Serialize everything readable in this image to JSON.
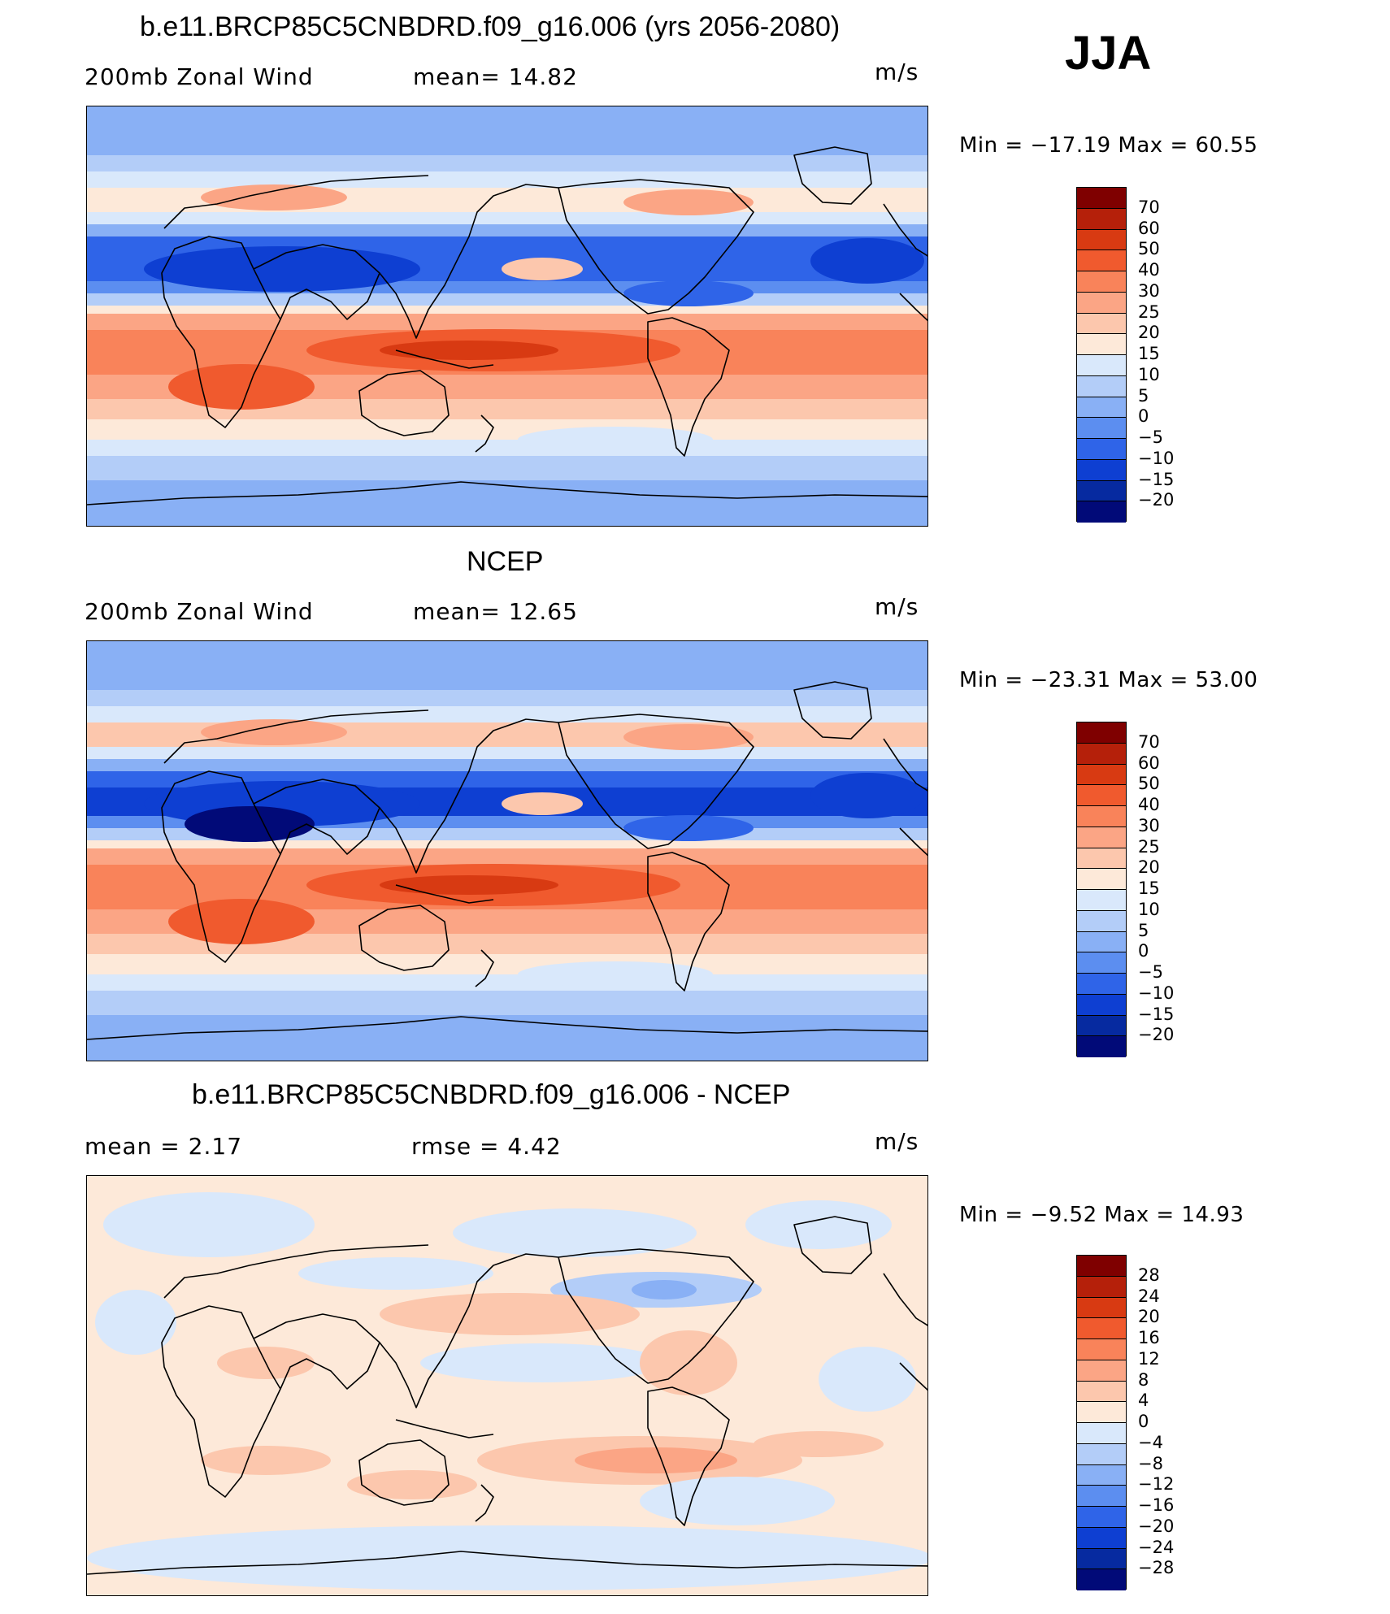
{
  "season": "JJA",
  "panels": [
    {
      "title": "b.e11.BRCP85C5CNBDRD.f09_g16.006 (yrs 2056-2080)",
      "left_label": "200mb  Zonal  Wind",
      "center_label": "mean=   14.82",
      "units": "m/s",
      "stats": "Min  =  −17.19  Max  =    60.55",
      "type": "field",
      "colorbar": {
        "labels": [
          "70",
          "60",
          "50",
          "40",
          "30",
          "25",
          "20",
          "15",
          "10",
          "5",
          "0",
          "−5",
          "−10",
          "−15",
          "−20"
        ],
        "colors": [
          "#7f0000",
          "#b5200a",
          "#d83a12",
          "#f05a2e",
          "#f9835a",
          "#fba585",
          "#fcc7ad",
          "#fde9d9",
          "#d9e8fb",
          "#b3cdf8",
          "#89b0f5",
          "#5c8ef0",
          "#2f64e8",
          "#0e3fd2",
          "#062aa0",
          "#010a78"
        ]
      },
      "min": -17.19,
      "max": 60.55
    },
    {
      "title": "NCEP",
      "left_label": "200mb  Zonal  Wind",
      "center_label": "mean=   12.65",
      "units": "m/s",
      "stats": "Min  =  −23.31  Max  =    53.00",
      "type": "field",
      "colorbar": {
        "labels": [
          "70",
          "60",
          "50",
          "40",
          "30",
          "25",
          "20",
          "15",
          "10",
          "5",
          "0",
          "−5",
          "−10",
          "−15",
          "−20"
        ],
        "colors": [
          "#7f0000",
          "#b5200a",
          "#d83a12",
          "#f05a2e",
          "#f9835a",
          "#fba585",
          "#fcc7ad",
          "#fde9d9",
          "#d9e8fb",
          "#b3cdf8",
          "#89b0f5",
          "#5c8ef0",
          "#2f64e8",
          "#0e3fd2",
          "#062aa0",
          "#010a78"
        ]
      },
      "min": -23.31,
      "max": 53.0
    },
    {
      "title": "b.e11.BRCP85C5CNBDRD.f09_g16.006 - NCEP",
      "left_label": "mean =     2.17",
      "center_label": "rmse  =     4.42",
      "units": "m/s",
      "stats": "Min  =    −9.52  Max  =    14.93",
      "type": "diff",
      "colorbar": {
        "labels": [
          "28",
          "24",
          "20",
          "16",
          "12",
          "8",
          "4",
          "0",
          "−4",
          "−8",
          "−12",
          "−16",
          "−20",
          "−24",
          "−28"
        ],
        "colors": [
          "#7f0000",
          "#b5200a",
          "#d83a12",
          "#f05a2e",
          "#f9835a",
          "#fba585",
          "#fcc7ad",
          "#fde9d9",
          "#d9e8fb",
          "#b3cdf8",
          "#89b0f5",
          "#5c8ef0",
          "#2f64e8",
          "#0e3fd2",
          "#062aa0",
          "#010a78"
        ]
      },
      "min": -9.52,
      "max": 14.93
    }
  ]
}
